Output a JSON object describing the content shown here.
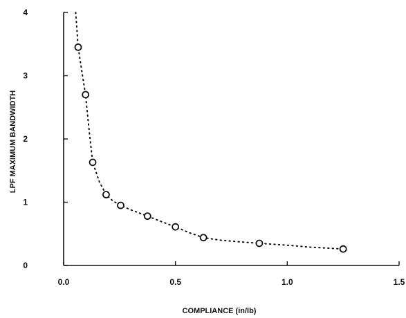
{
  "chart_data": {
    "type": "scatter",
    "title": "",
    "xlabel": "COMPLIANCE (in/lb)",
    "ylabel": "LPF MAXIMUM BANDWIDTH",
    "xlim": [
      0.0,
      1.5
    ],
    "ylim": [
      0,
      4
    ],
    "x_ticks": [
      0.0,
      0.5,
      1.0,
      1.5
    ],
    "x_tick_labels": [
      "0.0",
      "0.5",
      "1.0",
      "1.5"
    ],
    "y_ticks": [
      0,
      1,
      2,
      3,
      4
    ],
    "y_tick_labels": [
      "0",
      "1",
      "2",
      "3",
      "4"
    ],
    "grid": false,
    "legend": "none",
    "marker": "open-circle",
    "series": [
      {
        "x": [
          0.065,
          0.098,
          0.13,
          0.19,
          0.255,
          0.375,
          0.5,
          0.625,
          0.875,
          1.25
        ],
        "y": [
          3.45,
          2.7,
          1.63,
          1.12,
          0.95,
          0.78,
          0.61,
          0.44,
          0.35,
          0.26
        ]
      }
    ],
    "fit_curve": {
      "style": "dotted",
      "x": [
        0.054,
        0.065,
        0.08,
        0.098,
        0.115,
        0.13,
        0.16,
        0.19,
        0.22,
        0.255,
        0.3,
        0.375,
        0.44,
        0.5,
        0.56,
        0.625,
        0.7,
        0.8,
        0.875,
        1.0,
        1.1,
        1.25
      ],
      "y": [
        4.0,
        3.45,
        3.1,
        2.7,
        2.1,
        1.63,
        1.32,
        1.12,
        1.02,
        0.95,
        0.88,
        0.78,
        0.69,
        0.61,
        0.52,
        0.44,
        0.4,
        0.37,
        0.35,
        0.32,
        0.29,
        0.26
      ]
    },
    "colors": {
      "ink": "#111111",
      "background": "#ffffff"
    }
  }
}
